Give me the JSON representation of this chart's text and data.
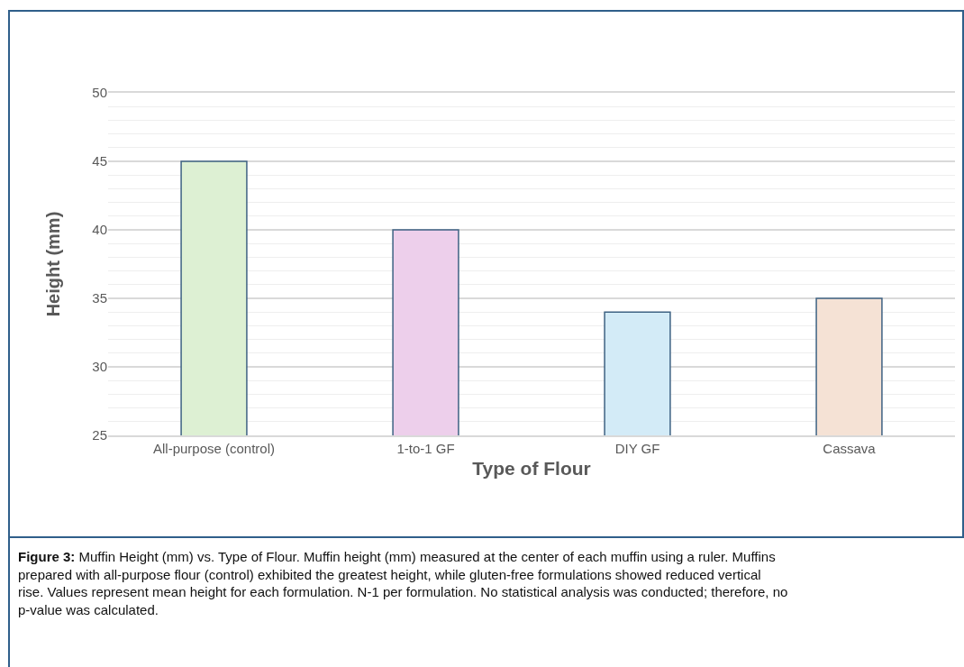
{
  "chart_data": {
    "type": "bar",
    "xlabel": "Type of Flour",
    "ylabel": "Height (mm)",
    "categories": [
      "All-purpose (control)",
      "1-to-1 GF",
      "DIY GF",
      "Cassava"
    ],
    "values": [
      45,
      40,
      34,
      35
    ],
    "colors": [
      "#ddf0d3",
      "#edcfeb",
      "#d3ebf7",
      "#f5e2d5"
    ],
    "ylim": [
      25,
      50
    ],
    "yticks": [
      25,
      {
        "value": 26,
        "label": null
      },
      {
        "value": 27,
        "label": null
      },
      {
        "value": 28,
        "label": null
      },
      {
        "value": 29,
        "label": null
      },
      30,
      {
        "value": 31,
        "label": null
      },
      {
        "value": 32,
        "label": null
      },
      {
        "value": 33,
        "label": null
      },
      {
        "value": 34,
        "label": null
      },
      35,
      {
        "value": 36,
        "label": null
      },
      {
        "value": 37,
        "label": null
      },
      {
        "value": 38,
        "label": null
      },
      {
        "value": 39,
        "label": null
      },
      40,
      {
        "value": 41,
        "label": null
      },
      {
        "value": 42,
        "label": null
      },
      {
        "value": 43,
        "label": null
      },
      {
        "value": 44,
        "label": null
      },
      45,
      {
        "value": 46,
        "label": null
      },
      {
        "value": 47,
        "label": null
      },
      {
        "value": 48,
        "label": null
      },
      {
        "value": 49,
        "label": null
      },
      50
    ],
    "grid": "y",
    "legend": false,
    "annotations": [
      "Figure 3: Muffin Height (mm) vs. Type of Flour. Muffin height (mm) measured at the center of each muffin using a ruler. Muffins prepared with all-purpose flour (control) exhibited the greatest height, while gluten-free formulations showed reduced vertical rise. Values represent mean height for each formulation. N-1 per formulation. No statistical analysis was conducted; therefore, no p-value was calculated."
    ]
  }
}
